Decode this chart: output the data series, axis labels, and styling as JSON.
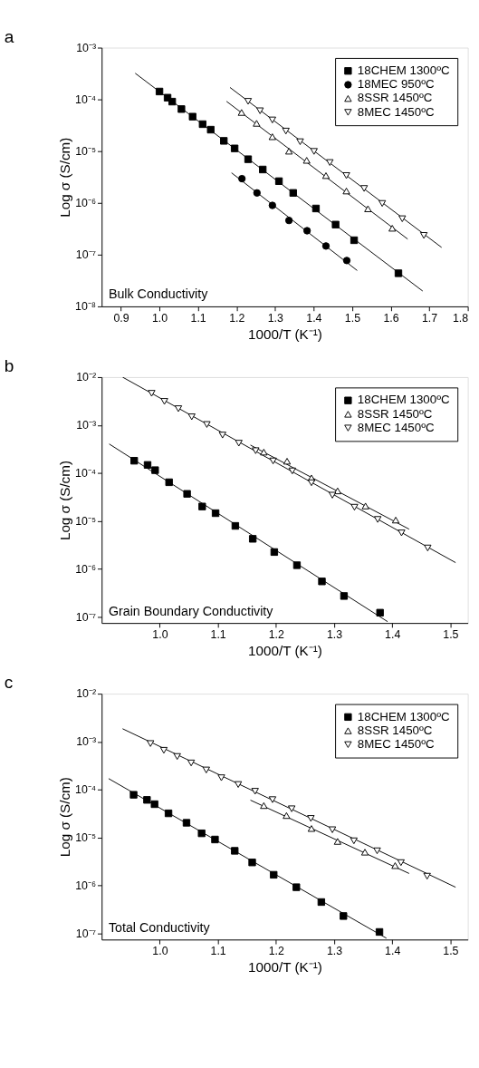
{
  "chart_data": [
    {
      "type": "scatter",
      "title": "a",
      "xlabel": "1000/T (K⁻¹)",
      "ylabel": "Log σ (S/cm)",
      "log": "y",
      "legend": "top right",
      "annotations": [
        "Bulk Conductivity"
      ],
      "xlim": [
        0.85,
        1.8
      ],
      "xticks": [
        {
          "value": 0.9,
          "label": "0.9"
        },
        {
          "value": 1.0,
          "label": "1.0"
        },
        {
          "value": 1.1,
          "label": "1.1"
        },
        {
          "value": 1.2,
          "label": "1.2"
        },
        {
          "value": 1.3,
          "label": "1.3"
        },
        {
          "value": 1.4,
          "label": "1.4"
        },
        {
          "value": 1.5,
          "label": "1.5"
        },
        {
          "value": 1.6,
          "label": "1.6"
        },
        {
          "value": 1.7,
          "label": "1.7"
        },
        {
          "value": 1.8,
          "label": "1.8"
        }
      ],
      "ylim": [
        1e-08,
        0.001
      ],
      "yticks": [
        {
          "value": 1e-08,
          "label": "10⁻⁸"
        },
        {
          "value": 1e-07,
          "label": "10⁻⁷"
        },
        {
          "value": 1e-06,
          "label": "10⁻⁶"
        },
        {
          "value": 1e-05,
          "label": "10⁻⁵"
        },
        {
          "value": 0.0001,
          "label": "10⁻⁴"
        },
        {
          "value": 0.001,
          "label": "10⁻³"
        }
      ],
      "series": [
        {
          "name": "18CHEM 1300ºC",
          "type": "scatter",
          "marker": "square",
          "color": "#000000",
          "x": [
            1.0,
            1.021,
            1.033,
            1.057,
            1.086,
            1.112,
            1.133,
            1.167,
            1.195,
            1.23,
            1.268,
            1.31,
            1.347,
            1.406,
            1.457,
            1.505,
            1.62
          ],
          "values": [
            0.000142,
            0.000108,
            9.06e-05,
            6.5e-05,
            4.64e-05,
            3.32e-05,
            2.6e-05,
            1.58e-05,
            1.13e-05,
            6.98e-06,
            4.42e-06,
            2.63e-06,
            1.56e-06,
            7.8e-07,
            3.81e-07,
            1.9e-07,
            4.37e-08
          ]
        },
        {
          "name": "18MEC 950ºC",
          "type": "scatter",
          "marker": "circle",
          "color": "#000000",
          "x": [
            1.214,
            1.253,
            1.293,
            1.336,
            1.383,
            1.432,
            1.486
          ],
          "values": [
            2.94e-06,
            1.56e-06,
            8.95e-07,
            4.58e-07,
            2.9e-07,
            1.47e-07,
            7.7e-08
          ]
        },
        {
          "name": "8SSR 1450ºC",
          "type": "scatter",
          "marker": "triangle",
          "color": "#000000",
          "x": [
            1.213,
            1.252,
            1.293,
            1.336,
            1.382,
            1.432,
            1.485,
            1.541,
            1.604
          ],
          "values": [
            5.59e-05,
            3.45e-05,
            1.9e-05,
            1e-05,
            6.65e-06,
            3.37e-06,
            1.7e-06,
            7.7e-07,
            3.24e-07
          ]
        },
        {
          "name": "8MEC 1450ºC",
          "type": "scatter",
          "marker": "triangle-down",
          "color": "#000000",
          "x": [
            1.23,
            1.261,
            1.293,
            1.328,
            1.365,
            1.401,
            1.442,
            1.485,
            1.531,
            1.578,
            1.63,
            1.686
          ],
          "values": [
            9.17e-05,
            6.02e-05,
            4e-05,
            2.44e-05,
            1.52e-05,
            9.88e-06,
            6.02e-06,
            3.37e-06,
            1.9e-06,
            9.75e-07,
            4.94e-07,
            2.35e-07
          ]
        },
        {
          "type": "line",
          "color": "#000000",
          "x": [
            0.937,
            1.683
          ],
          "values": [
            0.00032,
            1.98e-08
          ]
        },
        {
          "type": "line",
          "color": "#000000",
          "x": [
            1.187,
            1.513
          ],
          "values": [
            3.81e-06,
            4.94e-08
          ]
        },
        {
          "type": "line",
          "color": "#000000",
          "x": [
            1.174,
            1.644
          ],
          "values": [
            9.16e-05,
            2e-07
          ]
        },
        {
          "type": "line",
          "color": "#000000",
          "x": [
            1.183,
            1.732
          ],
          "values": [
            0.00017,
            1.38e-07
          ]
        }
      ]
    },
    {
      "type": "scatter",
      "title": "b",
      "xlabel": "1000/T (K⁻¹)",
      "ylabel": "Log σ (S/cm)",
      "log": "y",
      "legend": "top right",
      "annotations": [
        "Grain Boundary Conductivity"
      ],
      "xlim": [
        0.9,
        1.53
      ],
      "xticks": [
        {
          "value": 1.0,
          "label": "1.0"
        },
        {
          "value": 1.1,
          "label": "1.1"
        },
        {
          "value": 1.2,
          "label": "1.2"
        },
        {
          "value": 1.3,
          "label": "1.3"
        },
        {
          "value": 1.4,
          "label": "1.4"
        },
        {
          "value": 1.5,
          "label": "1.5"
        }
      ],
      "ylim": [
        7.5e-08,
        0.01
      ],
      "yticks": [
        {
          "value": 1e-07,
          "label": "10⁻⁷"
        },
        {
          "value": 1e-06,
          "label": "10⁻⁶"
        },
        {
          "value": 1e-05,
          "label": "10⁻⁵"
        },
        {
          "value": 0.0001,
          "label": "10⁻⁴"
        },
        {
          "value": 0.001,
          "label": "10⁻³"
        },
        {
          "value": 0.01,
          "label": "10⁻²"
        }
      ],
      "series": [
        {
          "name": "18CHEM 1300ºC",
          "type": "scatter",
          "marker": "square",
          "color": "#000000",
          "x": [
            0.956,
            0.979,
            0.992,
            1.016,
            1.047,
            1.073,
            1.096,
            1.13,
            1.16,
            1.197,
            1.236,
            1.279,
            1.317,
            1.379
          ],
          "values": [
            0.000181,
            0.000148,
            0.000115,
            6.44e-05,
            3.69e-05,
            2.01e-05,
            1.46e-05,
            7.93e-06,
            4.26e-06,
            2.26e-06,
            1.2e-06,
            5.52e-07,
            2.74e-07,
            1.23e-07
          ]
        },
        {
          "name": "8SSR 1450ºC",
          "type": "scatter",
          "marker": "triangle",
          "color": "#000000",
          "x": [
            1.179,
            1.219,
            1.261,
            1.306,
            1.354,
            1.406
          ],
          "values": [
            0.000274,
            0.000177,
            7.92e-05,
            4.26e-05,
            2.06e-05,
            1.05e-05
          ]
        },
        {
          "name": "8MEC 1450ºC",
          "type": "scatter",
          "marker": "triangle-down",
          "color": "#000000",
          "x": [
            0.986,
            1.008,
            1.032,
            1.055,
            1.081,
            1.108,
            1.136,
            1.165,
            1.195,
            1.228,
            1.261,
            1.297,
            1.335,
            1.375,
            1.416,
            1.461
          ],
          "values": [
            0.0046,
            0.00312,
            0.0022,
            0.00149,
            0.00103,
            0.00062,
            0.00042,
            0.000293,
            0.000179,
            0.000111,
            6.28e-05,
            3.46e-05,
            1.94e-05,
            1.08e-05,
            5.66e-06,
            2.74e-06
          ]
        },
        {
          "type": "line",
          "color": "#000000",
          "x": [
            0.913,
            1.392
          ],
          "values": [
            0.000404,
            8e-08
          ]
        },
        {
          "type": "line",
          "color": "#000000",
          "x": [
            1.156,
            1.429
          ],
          "values": [
            0.000384,
            6.78e-06
          ]
        },
        {
          "type": "line",
          "color": "#000000",
          "x": [
            0.936,
            1.509
          ],
          "values": [
            0.01,
            1.36e-06
          ]
        }
      ]
    },
    {
      "type": "scatter",
      "title": "c",
      "xlabel": "1000/T (K⁻¹)",
      "ylabel": "Log σ (S/cm)",
      "log": "y",
      "legend": "top right",
      "annotations": [
        "Total Conductivity"
      ],
      "xlim": [
        0.9,
        1.53
      ],
      "xticks": [
        {
          "value": 1.0,
          "label": "1.0"
        },
        {
          "value": 1.1,
          "label": "1.1"
        },
        {
          "value": 1.2,
          "label": "1.2"
        },
        {
          "value": 1.3,
          "label": "1.3"
        },
        {
          "value": 1.4,
          "label": "1.4"
        },
        {
          "value": 1.5,
          "label": "1.5"
        }
      ],
      "ylim": [
        7.5e-08,
        0.01
      ],
      "yticks": [
        {
          "value": 1e-07,
          "label": "10⁻⁷"
        },
        {
          "value": 1e-06,
          "label": "10⁻⁶"
        },
        {
          "value": 1e-05,
          "label": "10⁻⁵"
        },
        {
          "value": 0.0001,
          "label": "10⁻⁴"
        },
        {
          "value": 0.001,
          "label": "10⁻³"
        },
        {
          "value": 0.01,
          "label": "10⁻²"
        }
      ],
      "series": [
        {
          "name": "18CHEM 1300ºC",
          "type": "scatter",
          "marker": "square",
          "color": "#000000",
          "x": [
            0.955,
            0.978,
            0.991,
            1.015,
            1.046,
            1.072,
            1.095,
            1.129,
            1.159,
            1.196,
            1.235,
            1.278,
            1.316,
            1.378
          ],
          "values": [
            7.82e-05,
            6.12e-05,
            4.98e-05,
            3.21e-05,
            2.04e-05,
            1.23e-05,
            9.14e-06,
            5.31e-06,
            3.04e-06,
            1.68e-06,
            9.25e-07,
            4.54e-07,
            2.32e-07,
            1.08e-07
          ]
        },
        {
          "name": "8SSR 1450ºC",
          "type": "scatter",
          "marker": "triangle",
          "color": "#000000",
          "x": [
            1.179,
            1.218,
            1.261,
            1.306,
            1.353,
            1.405
          ],
          "values": [
            4.66e-05,
            2.89e-05,
            1.55e-05,
            8.34e-06,
            4.98e-06,
            2.61e-06
          ]
        },
        {
          "name": "8MEC 1450ºC",
          "type": "scatter",
          "marker": "triangle-down",
          "color": "#000000",
          "x": [
            0.984,
            1.007,
            1.03,
            1.054,
            1.08,
            1.106,
            1.135,
            1.164,
            1.194,
            1.227,
            1.26,
            1.297,
            1.334,
            1.374,
            1.415,
            1.46
          ],
          "values": [
            0.000914,
            0.000661,
            0.000491,
            0.00036,
            0.000257,
            0.000177,
            0.000128,
            9.25e-05,
            6.19e-05,
            3.99e-05,
            2.51e-05,
            1.46e-05,
            8.57e-06,
            5.31e-06,
            3.01e-06,
            1.57e-06
          ]
        },
        {
          "type": "line",
          "color": "#000000",
          "x": [
            0.912,
            1.39
          ],
          "values": [
            0.00017,
            8e-08
          ]
        },
        {
          "type": "line",
          "color": "#000000",
          "x": [
            1.156,
            1.429
          ],
          "values": [
            6.04e-05,
            1.79e-06
          ]
        },
        {
          "type": "line",
          "color": "#000000",
          "x": [
            0.936,
            1.509
          ],
          "values": [
            0.00186,
            9.25e-07
          ]
        }
      ]
    }
  ]
}
